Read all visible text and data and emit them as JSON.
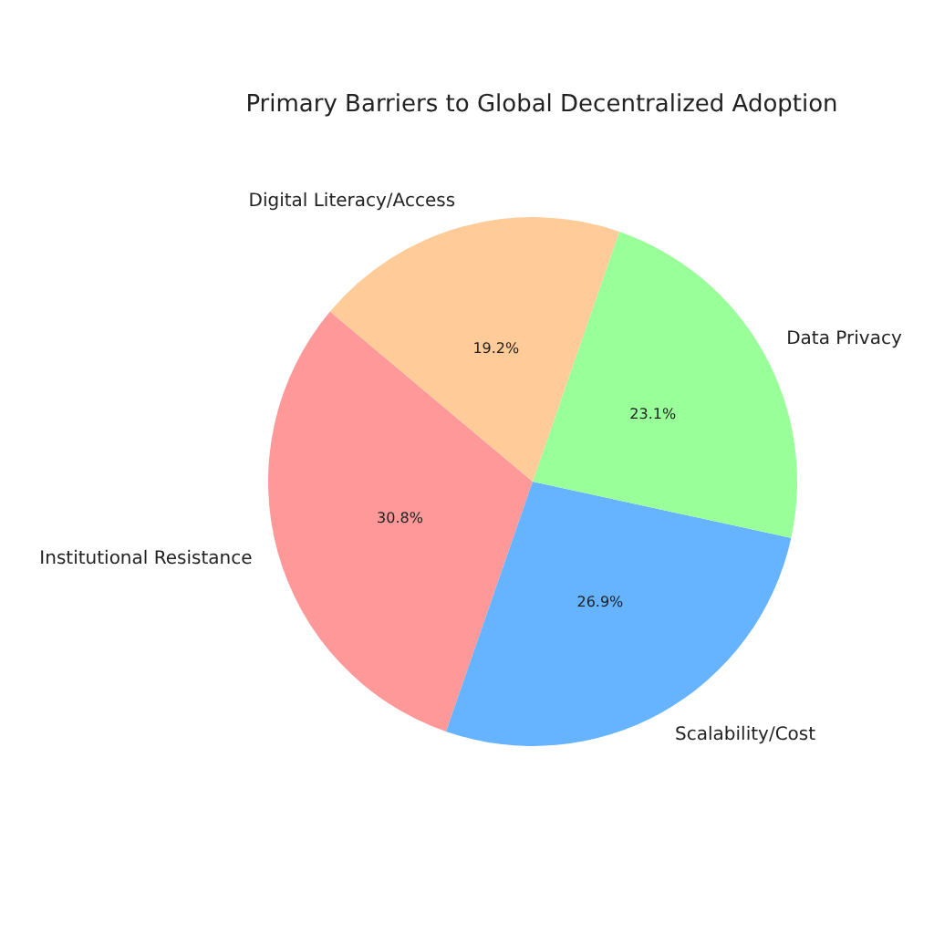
{
  "chart_data": {
    "type": "pie",
    "title": "Primary Barriers to Global Decentralized Adoption",
    "categories": [
      "Institutional Resistance",
      "Scalability/Cost",
      "Data Privacy",
      "Digital Literacy/Access"
    ],
    "values": [
      30.8,
      26.9,
      23.1,
      19.2
    ],
    "colors": [
      "#ff9999",
      "#66b3ff",
      "#99ff99",
      "#ffcc99"
    ],
    "value_labels": [
      "30.8%",
      "26.9%",
      "23.1%",
      "19.2%"
    ],
    "legend": false
  }
}
